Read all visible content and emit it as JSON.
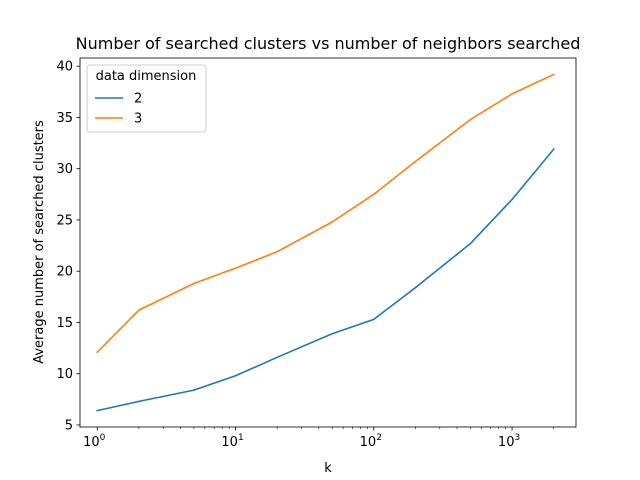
{
  "chart_data": {
    "type": "line",
    "title": "Number of searched clusters vs number of neighbors searched",
    "xlabel": "k",
    "ylabel": "Average number of searched clusters",
    "xscale": "log",
    "xlim": [
      0.75,
      2900
    ],
    "ylim": [
      4.8,
      40.8
    ],
    "x_ticks": [
      {
        "value": 1,
        "mant": "10",
        "exp": "0"
      },
      {
        "value": 10,
        "mant": "10",
        "exp": "1"
      },
      {
        "value": 100,
        "mant": "10",
        "exp": "2"
      },
      {
        "value": 1000,
        "mant": "10",
        "exp": "3"
      }
    ],
    "y_ticks": [
      {
        "value": 5,
        "label": "5"
      },
      {
        "value": 10,
        "label": "10"
      },
      {
        "value": 15,
        "label": "15"
      },
      {
        "value": 20,
        "label": "20"
      },
      {
        "value": 25,
        "label": "25"
      },
      {
        "value": 30,
        "label": "30"
      },
      {
        "value": 35,
        "label": "35"
      },
      {
        "value": 40,
        "label": "40"
      }
    ],
    "x": [
      1,
      2,
      5,
      10,
      20,
      50,
      100,
      200,
      500,
      1000,
      2000
    ],
    "series": [
      {
        "name": "2",
        "color": "#1f77b4",
        "values": [
          6.4,
          7.3,
          8.4,
          9.8,
          11.6,
          13.9,
          15.3,
          18.4,
          22.7,
          27.0,
          31.9
        ]
      },
      {
        "name": "3",
        "color": "#ff7f0e",
        "values": [
          12.1,
          16.2,
          18.8,
          20.3,
          21.9,
          24.8,
          27.5,
          30.7,
          34.8,
          37.3,
          39.2
        ]
      }
    ],
    "legend": {
      "title": "data dimension",
      "placement": "top-left"
    },
    "grid": false
  }
}
